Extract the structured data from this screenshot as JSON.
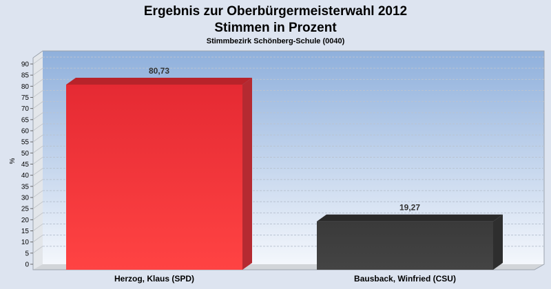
{
  "chart_data": {
    "type": "bar",
    "title": "Ergebnis zur Oberbürgermeisterwahl 2012",
    "title2": "Stimmen in Prozent",
    "subtitle": "Stimmbezirk Schönberg-Schule (0040)",
    "ylabel": "%",
    "xlabel": "",
    "ylim": [
      0,
      90
    ],
    "yticks": [
      0,
      5,
      10,
      15,
      20,
      25,
      30,
      35,
      40,
      45,
      50,
      55,
      60,
      65,
      70,
      75,
      80,
      85,
      90
    ],
    "categories": [
      "Herzog, Klaus (SPD)",
      "Bausback, Winfried (CSU)"
    ],
    "values": [
      80.73,
      19.27
    ],
    "value_labels": [
      "80,73",
      "19,27"
    ],
    "bar_colors": [
      "#ee2e36",
      "#3a3a3a"
    ],
    "grid": true,
    "legend": "none"
  }
}
